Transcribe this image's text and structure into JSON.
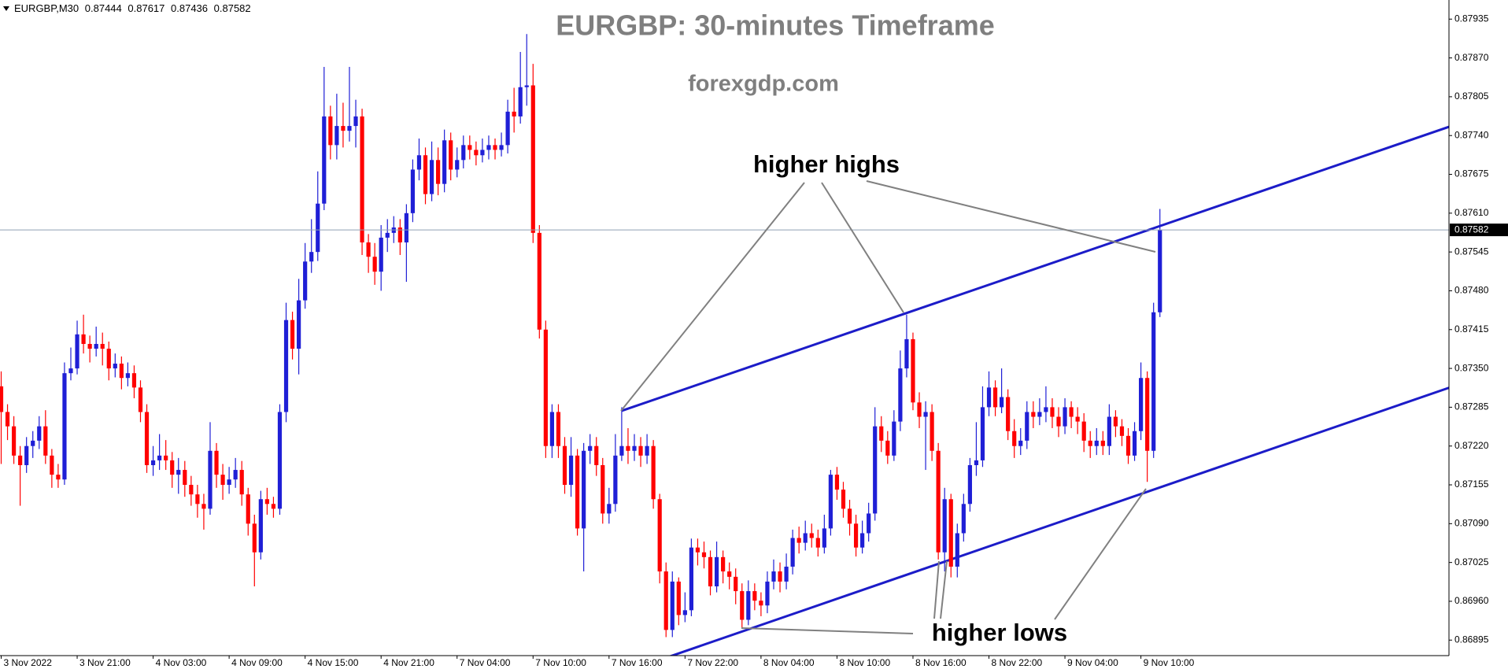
{
  "chart_data": {
    "type": "candlestick",
    "title": "EURGBP: 30-minutes Timeframe",
    "subtitle": "forexgdp.com",
    "symbol": "EURGBP,M30",
    "annotations": [
      "higher highs",
      "higher lows"
    ],
    "up_color": "#1f1fd6",
    "down_color": "#ff0000",
    "trend_color": "#1c1cc8",
    "price_line_color": "#8fa0b4",
    "categories": [
      "3 Nov 2022",
      null,
      null,
      null,
      null,
      null,
      null,
      null,
      null,
      null,
      null,
      null,
      "3 Nov 21:00",
      null,
      null,
      null,
      null,
      null,
      null,
      null,
      null,
      null,
      null,
      null,
      "4 Nov 03:00",
      null,
      null,
      null,
      null,
      null,
      null,
      null,
      null,
      null,
      null,
      null,
      "4 Nov 09:00",
      null,
      null,
      null,
      null,
      null,
      null,
      null,
      null,
      null,
      null,
      null,
      "4 Nov 15:00",
      null,
      null,
      null,
      null,
      null,
      null,
      null,
      null,
      null,
      null,
      null,
      "4 Nov 21:00",
      null,
      null,
      null,
      null,
      null,
      null,
      null,
      null,
      null,
      null,
      null,
      "7 Nov 04:00",
      null,
      null,
      null,
      null,
      null,
      null,
      null,
      null,
      null,
      null,
      null,
      "7 Nov 10:00",
      null,
      null,
      null,
      null,
      null,
      null,
      null,
      null,
      null,
      null,
      null,
      "7 Nov 16:00",
      null,
      null,
      null,
      null,
      null,
      null,
      null,
      null,
      null,
      null,
      null,
      "7 Nov 22:00",
      null,
      null,
      null,
      null,
      null,
      null,
      null,
      null,
      null,
      null,
      null,
      "8 Nov 04:00",
      null,
      null,
      null,
      null,
      null,
      null,
      null,
      null,
      null,
      null,
      null,
      "8 Nov 10:00",
      null,
      null,
      null,
      null,
      null,
      null,
      null,
      null,
      null,
      null,
      null,
      "8 Nov 16:00",
      null,
      null,
      null,
      null,
      null,
      null,
      null,
      null,
      null,
      null,
      null,
      "8 Nov 22:00",
      null,
      null,
      null,
      null,
      null,
      null,
      null,
      null,
      null,
      null,
      null,
      "9 Nov 04:00",
      null,
      null,
      null,
      null,
      null,
      null,
      null,
      null,
      null,
      null,
      null,
      "9 Nov 10:00",
      null,
      null,
      null
    ],
    "open": [
      0.8732,
      0.87277,
      0.87253,
      0.87204,
      0.87188,
      0.8722,
      0.87229,
      0.87253,
      0.87204,
      0.87172,
      0.87164,
      0.87342,
      0.8735,
      0.87407,
      0.87391,
      0.87383,
      0.87391,
      0.87383,
      0.8735,
      0.87358,
      0.87334,
      0.87342,
      0.87318,
      0.87277,
      0.87188,
      0.87196,
      0.87204,
      0.87196,
      0.87172,
      0.8718,
      0.87155,
      0.87139,
      0.87123,
      0.87115,
      0.87212,
      0.87172,
      0.87155,
      0.87164,
      0.8718,
      0.87139,
      0.8709,
      0.87042,
      0.87131,
      0.87123,
      0.87115,
      0.87277,
      0.87431,
      0.87383,
      0.87464,
      0.87529,
      0.87545,
      0.87626,
      0.87772,
      0.87724,
      0.87756,
      0.87748,
      0.87756,
      0.87772,
      0.87561,
      0.87537,
      0.87512,
      0.87569,
      0.87577,
      0.87586,
      0.87561,
      0.8761,
      0.87683,
      0.87707,
      0.87642,
      0.87699,
      0.87659,
      0.87732,
      0.87683,
      0.87699,
      0.87724,
      0.87716,
      0.87707,
      0.87716,
      0.87724,
      0.87716,
      0.87724,
      0.8778,
      0.87772,
      0.87821,
      0.87824,
      0.87577,
      0.87415,
      0.8722,
      0.87277,
      0.8722,
      0.87155,
      0.87204,
      0.87082,
      0.87212,
      0.8722,
      0.87188,
      0.87107,
      0.87123,
      0.87204,
      0.8722,
      0.87212,
      0.8722,
      0.87204,
      0.8722,
      0.87131,
      0.8701,
      0.86912,
      0.86993,
      0.86937,
      0.86945,
      0.8705,
      0.87042,
      0.87034,
      0.86985,
      0.87034,
      0.8701,
      0.87001,
      0.86977,
      0.86929,
      0.86977,
      0.86961,
      0.86953,
      0.86993,
      0.8701,
      0.86993,
      0.87018,
      0.87066,
      0.87058,
      0.87074,
      0.87066,
      0.8705,
      0.87082,
      0.87172,
      0.87147,
      0.87115,
      0.8709,
      0.8705,
      0.87074,
      0.87107,
      0.87253,
      0.87229,
      0.87204,
      0.87261,
      0.8735,
      0.87399,
      0.87293,
      0.87269,
      0.87277,
      0.87212,
      0.87042,
      0.87131,
      0.87018,
      0.87074,
      0.87123,
      0.87188,
      0.87196,
      0.87285,
      0.87318,
      0.87285,
      0.87302,
      0.87245,
      0.8722,
      0.87229,
      0.87277,
      0.87269,
      0.87277,
      0.87285,
      0.87269,
      0.87253,
      0.87285,
      0.87269,
      0.87261,
      0.87229,
      0.8722,
      0.87229,
      0.8722,
      0.87269,
      0.87253,
      0.87237,
      0.87204,
      0.87245,
      0.87334,
      0.87212,
      0.87444
    ],
    "high": [
      0.87345,
      0.8729,
      0.8727,
      0.8722,
      0.87235,
      0.87245,
      0.8727,
      0.8728,
      0.87215,
      0.8719,
      0.8736,
      0.87385,
      0.8743,
      0.8744,
      0.87405,
      0.8742,
      0.8741,
      0.87395,
      0.87375,
      0.8737,
      0.8736,
      0.87355,
      0.8733,
      0.8729,
      0.8722,
      0.8724,
      0.8723,
      0.8721,
      0.872,
      0.87195,
      0.8717,
      0.87155,
      0.8714,
      0.8726,
      0.87225,
      0.8719,
      0.87185,
      0.872,
      0.87195,
      0.8715,
      0.87105,
      0.87145,
      0.8715,
      0.87135,
      0.8729,
      0.8746,
      0.87445,
      0.875,
      0.8756,
      0.876,
      0.8768,
      0.87855,
      0.8779,
      0.8781,
      0.87795,
      0.87855,
      0.878,
      0.87785,
      0.87575,
      0.8756,
      0.8759,
      0.876,
      0.87605,
      0.876,
      0.87625,
      0.877,
      0.87735,
      0.8772,
      0.8773,
      0.8772,
      0.8775,
      0.87745,
      0.8772,
      0.8774,
      0.8774,
      0.8773,
      0.87735,
      0.8774,
      0.87735,
      0.87745,
      0.878,
      0.8782,
      0.8788,
      0.8791,
      0.8786,
      0.8759,
      0.8743,
      0.8729,
      0.8729,
      0.87235,
      0.87235,
      0.87215,
      0.87225,
      0.8724,
      0.87235,
      0.872,
      0.8715,
      0.8724,
      0.87285,
      0.8725,
      0.8724,
      0.87235,
      0.8724,
      0.8723,
      0.8714,
      0.87025,
      0.8701,
      0.87,
      0.86975,
      0.87065,
      0.87065,
      0.8706,
      0.87045,
      0.8706,
      0.87045,
      0.87025,
      0.87015,
      0.8699,
      0.86995,
      0.8699,
      0.86975,
      0.8701,
      0.8703,
      0.87025,
      0.8704,
      0.8708,
      0.87085,
      0.87095,
      0.8709,
      0.8708,
      0.87105,
      0.8718,
      0.87185,
      0.8716,
      0.8713,
      0.87105,
      0.87095,
      0.87125,
      0.87285,
      0.8727,
      0.87245,
      0.8728,
      0.8738,
      0.8744,
      0.8741,
      0.8731,
      0.87295,
      0.8729,
      0.87225,
      0.8715,
      0.8714,
      0.8709,
      0.8714,
      0.872,
      0.8726,
      0.8732,
      0.87345,
      0.8733,
      0.8735,
      0.87315,
      0.87265,
      0.8725,
      0.87295,
      0.87295,
      0.873,
      0.8732,
      0.873,
      0.87285,
      0.873,
      0.87295,
      0.87285,
      0.87275,
      0.87245,
      0.8725,
      0.87245,
      0.8729,
      0.8728,
      0.87265,
      0.8725,
      0.8726,
      0.8736,
      0.87345,
      0.8746,
      0.87617
    ],
    "low": [
      0.8719,
      0.8723,
      0.8719,
      0.8712,
      0.87175,
      0.872,
      0.87215,
      0.8719,
      0.8715,
      0.8715,
      0.87155,
      0.8733,
      0.8734,
      0.87375,
      0.8736,
      0.8737,
      0.87355,
      0.8733,
      0.87335,
      0.87315,
      0.8732,
      0.873,
      0.8726,
      0.87175,
      0.8717,
      0.8718,
      0.8718,
      0.8715,
      0.8714,
      0.87135,
      0.8712,
      0.871,
      0.8708,
      0.87105,
      0.8715,
      0.8713,
      0.8714,
      0.8715,
      0.8712,
      0.8707,
      0.86985,
      0.8703,
      0.87105,
      0.871,
      0.87105,
      0.8726,
      0.87365,
      0.8734,
      0.8745,
      0.8751,
      0.8753,
      0.87615,
      0.877,
      0.877,
      0.8772,
      0.8773,
      0.8772,
      0.8754,
      0.8751,
      0.8749,
      0.8748,
      0.87545,
      0.8756,
      0.8754,
      0.87495,
      0.87595,
      0.87665,
      0.87625,
      0.8763,
      0.8764,
      0.87645,
      0.87665,
      0.8767,
      0.87685,
      0.877,
      0.8769,
      0.87695,
      0.877,
      0.877,
      0.87705,
      0.8771,
      0.87745,
      0.8776,
      0.8779,
      0.8756,
      0.874,
      0.872,
      0.872,
      0.872,
      0.8714,
      0.87135,
      0.8707,
      0.8701,
      0.8719,
      0.8717,
      0.8709,
      0.8709,
      0.8711,
      0.87195,
      0.8719,
      0.87195,
      0.87185,
      0.8719,
      0.87115,
      0.8699,
      0.869,
      0.869,
      0.8692,
      0.86925,
      0.86935,
      0.8702,
      0.87015,
      0.8697,
      0.86975,
      0.8699,
      0.8698,
      0.86955,
      0.86915,
      0.8692,
      0.86945,
      0.86935,
      0.8694,
      0.8698,
      0.86975,
      0.8698,
      0.87005,
      0.8704,
      0.87045,
      0.8705,
      0.87035,
      0.8704,
      0.8707,
      0.8713,
      0.871,
      0.8707,
      0.87035,
      0.8704,
      0.8706,
      0.87095,
      0.8721,
      0.8719,
      0.87195,
      0.87245,
      0.87335,
      0.8728,
      0.8725,
      0.8718,
      0.87195,
      0.8703,
      0.8701,
      0.87,
      0.87,
      0.8706,
      0.8711,
      0.8717,
      0.87185,
      0.8727,
      0.8727,
      0.87275,
      0.8723,
      0.872,
      0.87205,
      0.87215,
      0.8725,
      0.87255,
      0.8726,
      0.8725,
      0.87235,
      0.8724,
      0.8725,
      0.8724,
      0.8721,
      0.872,
      0.87205,
      0.87205,
      0.87205,
      0.87235,
      0.8722,
      0.8719,
      0.87195,
      0.8723,
      0.8716,
      0.872,
      0.87436
    ],
    "close": [
      0.87277,
      0.87253,
      0.87204,
      0.87188,
      0.8722,
      0.87229,
      0.87253,
      0.87204,
      0.87172,
      0.87164,
      0.87342,
      0.8735,
      0.87407,
      0.87391,
      0.87383,
      0.87391,
      0.87383,
      0.8735,
      0.87358,
      0.87334,
      0.87342,
      0.87318,
      0.87277,
      0.87188,
      0.87196,
      0.87204,
      0.87196,
      0.87172,
      0.8718,
      0.87155,
      0.87139,
      0.87123,
      0.87115,
      0.87212,
      0.87172,
      0.87155,
      0.87164,
      0.8718,
      0.87139,
      0.8709,
      0.87042,
      0.87131,
      0.87123,
      0.87115,
      0.87277,
      0.87431,
      0.87383,
      0.87464,
      0.87529,
      0.87545,
      0.87626,
      0.87772,
      0.87724,
      0.87756,
      0.87748,
      0.87756,
      0.87772,
      0.87561,
      0.87537,
      0.87512,
      0.87569,
      0.87577,
      0.87586,
      0.87561,
      0.8761,
      0.87683,
      0.87707,
      0.87642,
      0.87699,
      0.87659,
      0.87732,
      0.87683,
      0.87699,
      0.87724,
      0.87716,
      0.87707,
      0.87716,
      0.87724,
      0.87716,
      0.87724,
      0.8778,
      0.87772,
      0.87821,
      0.87824,
      0.87577,
      0.87415,
      0.8722,
      0.87277,
      0.8722,
      0.87155,
      0.87204,
      0.87082,
      0.87212,
      0.8722,
      0.87188,
      0.87107,
      0.87123,
      0.87204,
      0.8722,
      0.87212,
      0.8722,
      0.87204,
      0.8722,
      0.87131,
      0.8701,
      0.86912,
      0.86993,
      0.86937,
      0.86945,
      0.8705,
      0.87042,
      0.87034,
      0.86985,
      0.87034,
      0.8701,
      0.87001,
      0.86977,
      0.86929,
      0.86977,
      0.86961,
      0.86953,
      0.86993,
      0.8701,
      0.86993,
      0.87018,
      0.87066,
      0.87058,
      0.87074,
      0.87066,
      0.8705,
      0.87082,
      0.87172,
      0.87147,
      0.87115,
      0.8709,
      0.8705,
      0.87074,
      0.87107,
      0.87253,
      0.87229,
      0.87204,
      0.87261,
      0.8735,
      0.87399,
      0.87293,
      0.87269,
      0.87277,
      0.87212,
      0.87042,
      0.87131,
      0.87018,
      0.87074,
      0.87123,
      0.87188,
      0.87196,
      0.87285,
      0.87318,
      0.87285,
      0.87302,
      0.87245,
      0.8722,
      0.87229,
      0.87277,
      0.87269,
      0.87277,
      0.87285,
      0.87269,
      0.87253,
      0.87285,
      0.87269,
      0.87261,
      0.87229,
      0.8722,
      0.87229,
      0.8722,
      0.87269,
      0.87253,
      0.87237,
      0.87204,
      0.87245,
      0.87334,
      0.87212,
      0.87444,
      0.87582
    ],
    "trendlines": [
      {
        "x": [
          98,
          230.4
        ],
        "y": [
          0.87279,
          0.87761
        ]
      },
      {
        "x": [
          105.7,
          230.4
        ],
        "y": [
          0.86868,
          0.87324
        ]
      }
    ],
    "ylim": [
      0.86869,
      0.87967
    ],
    "yticks": [
      0.87935,
      {
        "value": 0.8787,
        "label": "0.87870"
      },
      0.87805,
      {
        "value": 0.8774,
        "label": "0.87740"
      },
      0.87675,
      {
        "value": 0.8761,
        "label": "0.87610"
      },
      0.87545,
      {
        "value": 0.8748,
        "label": "0.87480"
      },
      0.87415,
      {
        "value": 0.8735,
        "label": "0.87350"
      },
      0.87285,
      {
        "value": 0.8722,
        "label": "0.87220"
      },
      0.87155,
      {
        "value": 0.8709,
        "label": "0.87090"
      },
      0.87025,
      {
        "value": 0.8696,
        "label": "0.86960"
      },
      0.86895
    ]
  }
}
